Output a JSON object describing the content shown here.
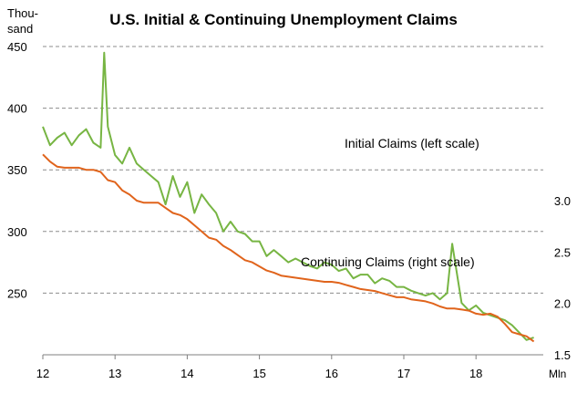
{
  "chart_data": {
    "type": "line",
    "title": "U.S. Initial & Continuing Unemployment Claims",
    "left_axis": {
      "unit": "Thou-sand",
      "unit_lines": [
        "Thou-",
        "sand"
      ],
      "ticks": [
        "250",
        "300",
        "350",
        "400",
        "450"
      ],
      "range": [
        200,
        450
      ]
    },
    "right_axis": {
      "unit": "Mln",
      "ticks": [
        "1.5",
        "2.0",
        "2.5",
        "3.0"
      ],
      "range": [
        1.5,
        4.5
      ]
    },
    "x_axis": {
      "ticks": [
        "12",
        "13",
        "14",
        "15",
        "16",
        "17",
        "18"
      ],
      "range": [
        12,
        18.9
      ]
    },
    "grid": "horizontal dashed",
    "series": [
      {
        "name": "Initial Claims (left scale)",
        "label": "Initial Claims (left scale)",
        "axis": "left",
        "color": "#77b543",
        "x": [
          12.0,
          12.1,
          12.2,
          12.3,
          12.4,
          12.5,
          12.6,
          12.7,
          12.8,
          12.85,
          12.9,
          13.0,
          13.1,
          13.2,
          13.3,
          13.4,
          13.5,
          13.6,
          13.7,
          13.8,
          13.9,
          14.0,
          14.1,
          14.2,
          14.3,
          14.4,
          14.5,
          14.6,
          14.7,
          14.8,
          14.9,
          15.0,
          15.1,
          15.2,
          15.3,
          15.4,
          15.5,
          15.6,
          15.7,
          15.8,
          15.9,
          16.0,
          16.1,
          16.2,
          16.3,
          16.4,
          16.5,
          16.6,
          16.7,
          16.8,
          16.9,
          17.0,
          17.1,
          17.2,
          17.3,
          17.4,
          17.5,
          17.6,
          17.67,
          17.8,
          17.9,
          18.0,
          18.1,
          18.2,
          18.3,
          18.4,
          18.5,
          18.6,
          18.7,
          18.8
        ],
        "values": [
          385,
          370,
          376,
          380,
          370,
          378,
          383,
          372,
          368,
          445,
          385,
          362,
          355,
          368,
          355,
          350,
          345,
          340,
          322,
          345,
          328,
          340,
          315,
          330,
          322,
          315,
          300,
          308,
          300,
          298,
          292,
          292,
          280,
          285,
          280,
          275,
          278,
          275,
          272,
          270,
          275,
          273,
          268,
          270,
          262,
          265,
          265,
          258,
          262,
          260,
          255,
          255,
          252,
          250,
          248,
          250,
          245,
          250,
          290,
          242,
          236,
          240,
          234,
          232,
          230,
          228,
          224,
          218,
          212,
          214
        ]
      },
      {
        "name": "Continuing Claims (right scale)",
        "label": "Continuing Claims (right scale)",
        "axis": "right",
        "color": "#e0641c",
        "x": [
          12.0,
          12.1,
          12.2,
          12.3,
          12.4,
          12.5,
          12.6,
          12.7,
          12.8,
          12.9,
          13.0,
          13.1,
          13.2,
          13.3,
          13.4,
          13.5,
          13.6,
          13.7,
          13.8,
          13.9,
          14.0,
          14.1,
          14.2,
          14.3,
          14.4,
          14.5,
          14.6,
          14.7,
          14.8,
          14.9,
          15.0,
          15.1,
          15.2,
          15.3,
          15.4,
          15.5,
          15.6,
          15.7,
          15.8,
          15.9,
          16.0,
          16.1,
          16.2,
          16.3,
          16.4,
          16.5,
          16.6,
          16.7,
          16.8,
          16.9,
          17.0,
          17.1,
          17.2,
          17.3,
          17.4,
          17.5,
          17.6,
          17.7,
          17.8,
          17.9,
          18.0,
          18.1,
          18.2,
          18.3,
          18.4,
          18.5,
          18.6,
          18.7,
          18.8
        ],
        "values": [
          3.45,
          3.38,
          3.33,
          3.32,
          3.32,
          3.32,
          3.3,
          3.3,
          3.28,
          3.2,
          3.18,
          3.1,
          3.06,
          3.0,
          2.98,
          2.98,
          2.98,
          2.93,
          2.88,
          2.86,
          2.82,
          2.76,
          2.7,
          2.64,
          2.62,
          2.56,
          2.52,
          2.47,
          2.42,
          2.4,
          2.36,
          2.32,
          2.3,
          2.27,
          2.26,
          2.25,
          2.24,
          2.23,
          2.22,
          2.21,
          2.21,
          2.2,
          2.18,
          2.16,
          2.14,
          2.13,
          2.12,
          2.1,
          2.08,
          2.06,
          2.06,
          2.04,
          2.03,
          2.02,
          2.0,
          1.97,
          1.95,
          1.95,
          1.94,
          1.93,
          1.9,
          1.89,
          1.9,
          1.87,
          1.8,
          1.72,
          1.7,
          1.68,
          1.63
        ]
      }
    ]
  }
}
